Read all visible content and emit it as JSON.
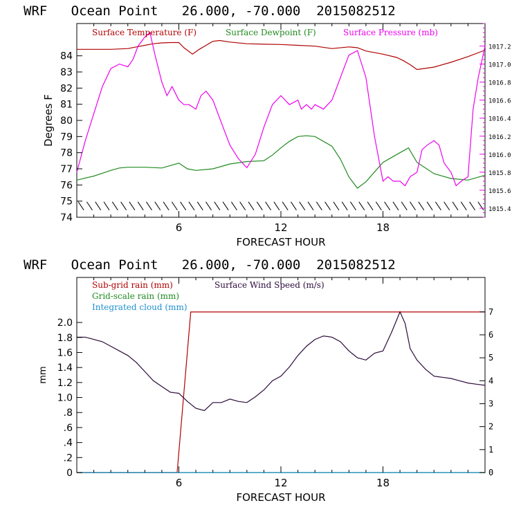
{
  "colors": {
    "axis": "#000000",
    "temperature": "#b00000",
    "dewpoint": "#1f8a1f",
    "pressure": "#ee00ee",
    "subgrid_rain": "#b00000",
    "gridscale_rain": "#1f8a1f",
    "cloud": "#1e90d0",
    "wind": "#2a0a3a"
  },
  "chart_data": [
    {
      "type": "line",
      "title": "WRF   Ocean Point   26.000, -70.000  2015082512",
      "xlabel": "FORECAST HOUR",
      "ylabel": "Degrees F",
      "xlim": [
        0,
        24
      ],
      "ylim": [
        74,
        86
      ],
      "x_ticks": [
        6,
        12,
        18
      ],
      "y_ticks": [
        74,
        75,
        76,
        77,
        78,
        79,
        80,
        81,
        82,
        83,
        84
      ],
      "y2lim": [
        1015.3,
        1017.45
      ],
      "y2_ticks": [
        1015.4,
        1015.6,
        1015.8,
        1016.0,
        1016.2,
        1016.4,
        1016.6,
        1016.8,
        1017.0,
        1017.2
      ],
      "y2_tick_labels": [
        "1015.4",
        "1015.6",
        "1015.8",
        "1016.0",
        "1016.2",
        "1016.4",
        "1016.6",
        "1016.8",
        "1017.0",
        "1017.2"
      ],
      "legend": [
        "Surface Temperature (F)",
        "Surface Dewpoint (F)",
        "Surface Pressure (mb)"
      ],
      "series": [
        {
          "name": "Surface Temperature (F)",
          "axis": "left",
          "x": [
            0,
            1,
            2,
            3,
            3.5,
            4,
            4.5,
            5,
            5.5,
            6,
            6.3,
            6.8,
            7.2,
            7.6,
            8,
            8.4,
            9,
            10,
            11,
            12,
            13,
            14,
            15,
            16,
            16.5,
            17,
            18,
            18.8,
            19.2,
            19.6,
            20,
            21,
            22,
            23,
            24
          ],
          "values": [
            84.4,
            84.4,
            84.4,
            84.45,
            84.55,
            84.65,
            84.75,
            84.8,
            84.82,
            84.82,
            84.5,
            84.1,
            84.4,
            84.65,
            84.9,
            84.95,
            84.85,
            84.75,
            84.72,
            84.7,
            84.65,
            84.6,
            84.45,
            84.55,
            84.5,
            84.3,
            84.1,
            83.9,
            83.7,
            83.45,
            83.15,
            83.3,
            83.6,
            83.95,
            84.35
          ]
        },
        {
          "name": "Surface Dewpoint (F)",
          "axis": "left",
          "x": [
            0,
            1,
            2,
            2.5,
            3,
            4,
            5,
            5.5,
            6,
            6.5,
            7,
            8,
            9,
            10,
            11,
            11.5,
            12,
            12.5,
            13,
            13.5,
            14,
            15,
            15.5,
            16,
            16.5,
            17,
            17.5,
            18,
            18.5,
            19,
            19.5,
            20,
            21,
            22,
            23,
            24
          ],
          "values": [
            76.3,
            76.55,
            76.9,
            77.05,
            77.1,
            77.1,
            77.05,
            77.2,
            77.35,
            77.0,
            76.9,
            77.0,
            77.3,
            77.45,
            77.5,
            77.85,
            78.3,
            78.7,
            79.0,
            79.05,
            79.0,
            78.4,
            77.6,
            76.5,
            75.8,
            76.2,
            76.8,
            77.4,
            77.7,
            78.0,
            78.3,
            77.4,
            76.7,
            76.4,
            76.3,
            76.6
          ]
        },
        {
          "name": "Surface Pressure (mb)",
          "axis": "right",
          "x": [
            0,
            0.5,
            1,
            1.5,
            2,
            2.5,
            3,
            3.3,
            3.6,
            4,
            4.3,
            4.6,
            5,
            5.3,
            5.6,
            6,
            6.3,
            6.6,
            7,
            7.3,
            7.6,
            8,
            8.3,
            8.6,
            9,
            9.5,
            10,
            10.5,
            11,
            11.5,
            12,
            12.5,
            13,
            13.2,
            13.5,
            13.8,
            14,
            14.5,
            15,
            15.5,
            16,
            16.5,
            17,
            17.5,
            18,
            18.3,
            18.6,
            19,
            19.3,
            19.6,
            20,
            20.3,
            20.6,
            21,
            21.3,
            21.6,
            22,
            22.3,
            22.6,
            23,
            23.3,
            23.6,
            24
          ],
          "values": [
            1015.8,
            1016.15,
            1016.45,
            1016.75,
            1016.95,
            1017.0,
            1016.97,
            1017.05,
            1017.2,
            1017.3,
            1017.35,
            1017.1,
            1016.8,
            1016.65,
            1016.75,
            1016.6,
            1016.55,
            1016.55,
            1016.5,
            1016.65,
            1016.7,
            1016.6,
            1016.45,
            1016.3,
            1016.1,
            1015.95,
            1015.85,
            1016.0,
            1016.3,
            1016.55,
            1016.65,
            1016.55,
            1016.6,
            1016.5,
            1016.55,
            1016.5,
            1016.55,
            1016.5,
            1016.6,
            1016.85,
            1017.1,
            1017.15,
            1016.85,
            1016.2,
            1015.7,
            1015.75,
            1015.7,
            1015.7,
            1015.65,
            1015.75,
            1015.8,
            1016.05,
            1016.1,
            1016.15,
            1016.1,
            1015.9,
            1015.8,
            1015.65,
            1015.7,
            1015.75,
            1016.5,
            1016.85,
            1017.2
          ]
        }
      ],
      "wind_barb_row": {
        "y": 74.7,
        "x_start": 0.25,
        "x_end": 23.75,
        "step": 0.5
      }
    },
    {
      "type": "line",
      "title": "WRF   Ocean Point   26.000, -70.000  2015082512",
      "xlabel": "FORECAST HOUR",
      "ylabel": "mm",
      "xlim": [
        0,
        24
      ],
      "ylim": [
        0,
        2.6
      ],
      "x_ticks": [
        6,
        12,
        18
      ],
      "y_ticks": [
        0,
        0.2,
        0.4,
        0.6,
        0.8,
        1.0,
        1.2,
        1.4,
        1.6,
        1.8,
        2.0
      ],
      "y_tick_labels": [
        "0",
        ".2",
        ".4",
        ".6",
        ".8",
        "1.0",
        "1.2",
        "1.4",
        "1.6",
        "1.8",
        "2.0"
      ],
      "y2lim": [
        0,
        8.5
      ],
      "y2_ticks": [
        0,
        1,
        2,
        3,
        4,
        5,
        6,
        7
      ],
      "y2_tick_labels": [
        "0",
        "1",
        "2",
        "3",
        "4",
        "5",
        "6",
        "7"
      ],
      "legend": [
        "Sub-grid rain (mm)",
        "Grid-scale rain (mm)",
        "Integrated cloud (mm)",
        "Surface Wind Speed (m/s)"
      ],
      "series": [
        {
          "name": "Sub-grid rain (mm)",
          "axis": "left",
          "x": [
            0,
            5.9,
            6.7,
            24
          ],
          "values": [
            0,
            0,
            2.14,
            2.14
          ]
        },
        {
          "name": "Grid-scale rain (mm)",
          "axis": "left",
          "x": [
            0,
            24
          ],
          "values": [
            0,
            0
          ]
        },
        {
          "name": "Integrated cloud (mm)",
          "axis": "left",
          "x": [
            0,
            24
          ],
          "values": [
            0,
            0
          ]
        },
        {
          "name": "Surface Wind Speed (m/s)",
          "axis": "right",
          "x": [
            0,
            0.5,
            1,
            1.5,
            2,
            2.5,
            3,
            3.5,
            4,
            4.5,
            5,
            5.5,
            6,
            6.5,
            7,
            7.5,
            8,
            8.5,
            9,
            9.5,
            10,
            10.5,
            11,
            11.5,
            12,
            12.5,
            13,
            13.5,
            14,
            14.5,
            15,
            15.5,
            16,
            16.5,
            17,
            17.5,
            18,
            18.5,
            19,
            19.3,
            19.6,
            20,
            20.5,
            21,
            21.5,
            22,
            22.5,
            23,
            23.5,
            24
          ],
          "values": [
            5.9,
            5.9,
            5.8,
            5.7,
            5.5,
            5.3,
            5.1,
            4.8,
            4.4,
            4.0,
            3.75,
            3.5,
            3.45,
            3.1,
            2.8,
            2.7,
            3.05,
            3.05,
            3.2,
            3.1,
            3.05,
            3.3,
            3.6,
            4.0,
            4.2,
            4.6,
            5.1,
            5.5,
            5.8,
            5.95,
            5.9,
            5.7,
            5.3,
            5.0,
            4.9,
            5.2,
            5.3,
            6.1,
            7.0,
            6.5,
            5.4,
            4.9,
            4.5,
            4.2,
            4.15,
            4.1,
            4.0,
            3.9,
            3.85,
            3.8
          ]
        }
      ]
    }
  ]
}
